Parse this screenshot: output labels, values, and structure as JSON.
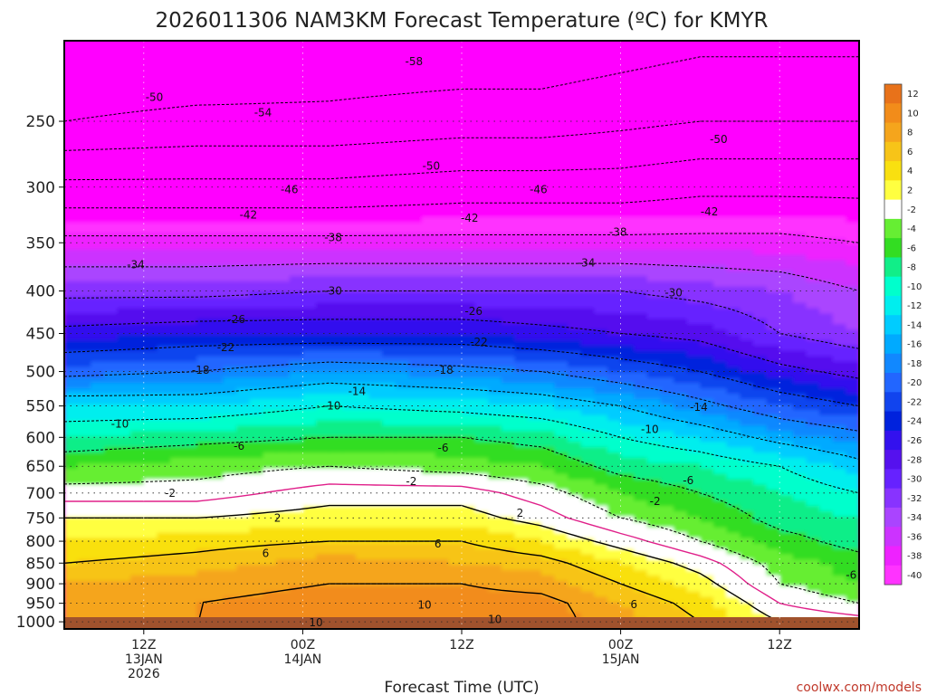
{
  "chart_data": {
    "type": "heatmap",
    "title": "2026011306 NAM3KM Forecast Temperature (ºC) for KMYR",
    "xlabel": "Forecast Time (UTC)",
    "ylabel": "",
    "y_scale": "log",
    "y_inverted": true,
    "ylim": [
      1020,
      200
    ],
    "y_ticks": [
      250,
      300,
      350,
      400,
      450,
      500,
      550,
      600,
      650,
      700,
      750,
      800,
      850,
      900,
      950,
      1000
    ],
    "x_ticks": [
      {
        "hour": 6,
        "lines": [
          "12Z",
          "13JAN",
          "2026"
        ]
      },
      {
        "hour": 18,
        "lines": [
          "00Z",
          "14JAN"
        ]
      },
      {
        "hour": 30,
        "lines": [
          "12Z"
        ]
      },
      {
        "hour": 42,
        "lines": [
          "00Z",
          "15JAN"
        ]
      },
      {
        "hour": 54,
        "lines": [
          "12Z"
        ]
      }
    ],
    "xlim": [
      0,
      60
    ],
    "grid": true,
    "colorbar": {
      "labels": [
        "12",
        "10",
        "8",
        "6",
        "4",
        "2",
        "-2",
        "-4",
        "-6",
        "-8",
        "-10",
        "-12",
        "-14",
        "-16",
        "-18",
        "-20",
        "-22",
        "-24",
        "-26",
        "-28",
        "-30",
        "-32",
        "-34",
        "-36",
        "-38",
        "-40"
      ],
      "colors": [
        "#e8721a",
        "#f28c1a",
        "#f5a51c",
        "#f7c418",
        "#f9e010",
        "#ffff40",
        "#ffffff",
        "#66ee33",
        "#33dd22",
        "#11ee88",
        "#00ffcc",
        "#00eeee",
        "#00ccff",
        "#00aaff",
        "#1188ff",
        "#2266ff",
        "#1144ee",
        "#0022dd",
        "#3311ee",
        "#5511ee",
        "#6622ff",
        "#8833ff",
        "#aa44ff",
        "#cc33ff",
        "#ee22ff",
        "#ff33ff"
      ]
    },
    "contour_labels": [
      {
        "t": 6.8,
        "p": 234,
        "label": "-50"
      },
      {
        "t": 15.0,
        "p": 244,
        "label": "-54"
      },
      {
        "t": 26.4,
        "p": 212,
        "label": "-58"
      },
      {
        "t": 49.4,
        "p": 263,
        "label": "-50"
      },
      {
        "t": 27.7,
        "p": 283,
        "label": "-50"
      },
      {
        "t": 17.0,
        "p": 302,
        "label": "-46"
      },
      {
        "t": 35.8,
        "p": 302,
        "label": "-46"
      },
      {
        "t": 13.9,
        "p": 324,
        "label": "-42"
      },
      {
        "t": 30.6,
        "p": 327,
        "label": "-42"
      },
      {
        "t": 48.7,
        "p": 321,
        "label": "-42"
      },
      {
        "t": 20.3,
        "p": 345,
        "label": "-38"
      },
      {
        "t": 41.8,
        "p": 340,
        "label": "-38"
      },
      {
        "t": 5.4,
        "p": 372,
        "label": "-34"
      },
      {
        "t": 39.4,
        "p": 370,
        "label": "-34"
      },
      {
        "t": 20.3,
        "p": 400,
        "label": "-30"
      },
      {
        "t": 46.0,
        "p": 402,
        "label": "-30"
      },
      {
        "t": 13.0,
        "p": 433,
        "label": "-26"
      },
      {
        "t": 30.9,
        "p": 423,
        "label": "-26"
      },
      {
        "t": 12.2,
        "p": 468,
        "label": "-22"
      },
      {
        "t": 31.3,
        "p": 461,
        "label": "-22"
      },
      {
        "t": 10.3,
        "p": 498,
        "label": "-18"
      },
      {
        "t": 28.7,
        "p": 498,
        "label": "-18"
      },
      {
        "t": 22.1,
        "p": 528,
        "label": "-14"
      },
      {
        "t": 47.9,
        "p": 552,
        "label": "-14"
      },
      {
        "t": 20.2,
        "p": 550,
        "label": "-10"
      },
      {
        "t": 4.2,
        "p": 578,
        "label": "-10"
      },
      {
        "t": 44.2,
        "p": 587,
        "label": "-10"
      },
      {
        "t": 13.2,
        "p": 615,
        "label": "-6"
      },
      {
        "t": 28.6,
        "p": 618,
        "label": "-6"
      },
      {
        "t": 47.1,
        "p": 676,
        "label": "-6"
      },
      {
        "t": 59.4,
        "p": 879,
        "label": "-6"
      },
      {
        "t": 8.0,
        "p": 700,
        "label": "-2"
      },
      {
        "t": 26.2,
        "p": 678,
        "label": "-2"
      },
      {
        "t": 44.6,
        "p": 716,
        "label": "-2"
      },
      {
        "t": 16.1,
        "p": 750,
        "label": "2"
      },
      {
        "t": 34.4,
        "p": 740,
        "label": "2"
      },
      {
        "t": 15.2,
        "p": 827,
        "label": "6"
      },
      {
        "t": 28.2,
        "p": 806,
        "label": "6"
      },
      {
        "t": 43.0,
        "p": 953,
        "label": "6"
      },
      {
        "t": 19.0,
        "p": 1002,
        "label": "10"
      },
      {
        "t": 27.2,
        "p": 955,
        "label": "10"
      },
      {
        "t": 32.5,
        "p": 994,
        "label": "10"
      }
    ],
    "value_labels_note": ""
  },
  "credit": "coolwx.com/models"
}
